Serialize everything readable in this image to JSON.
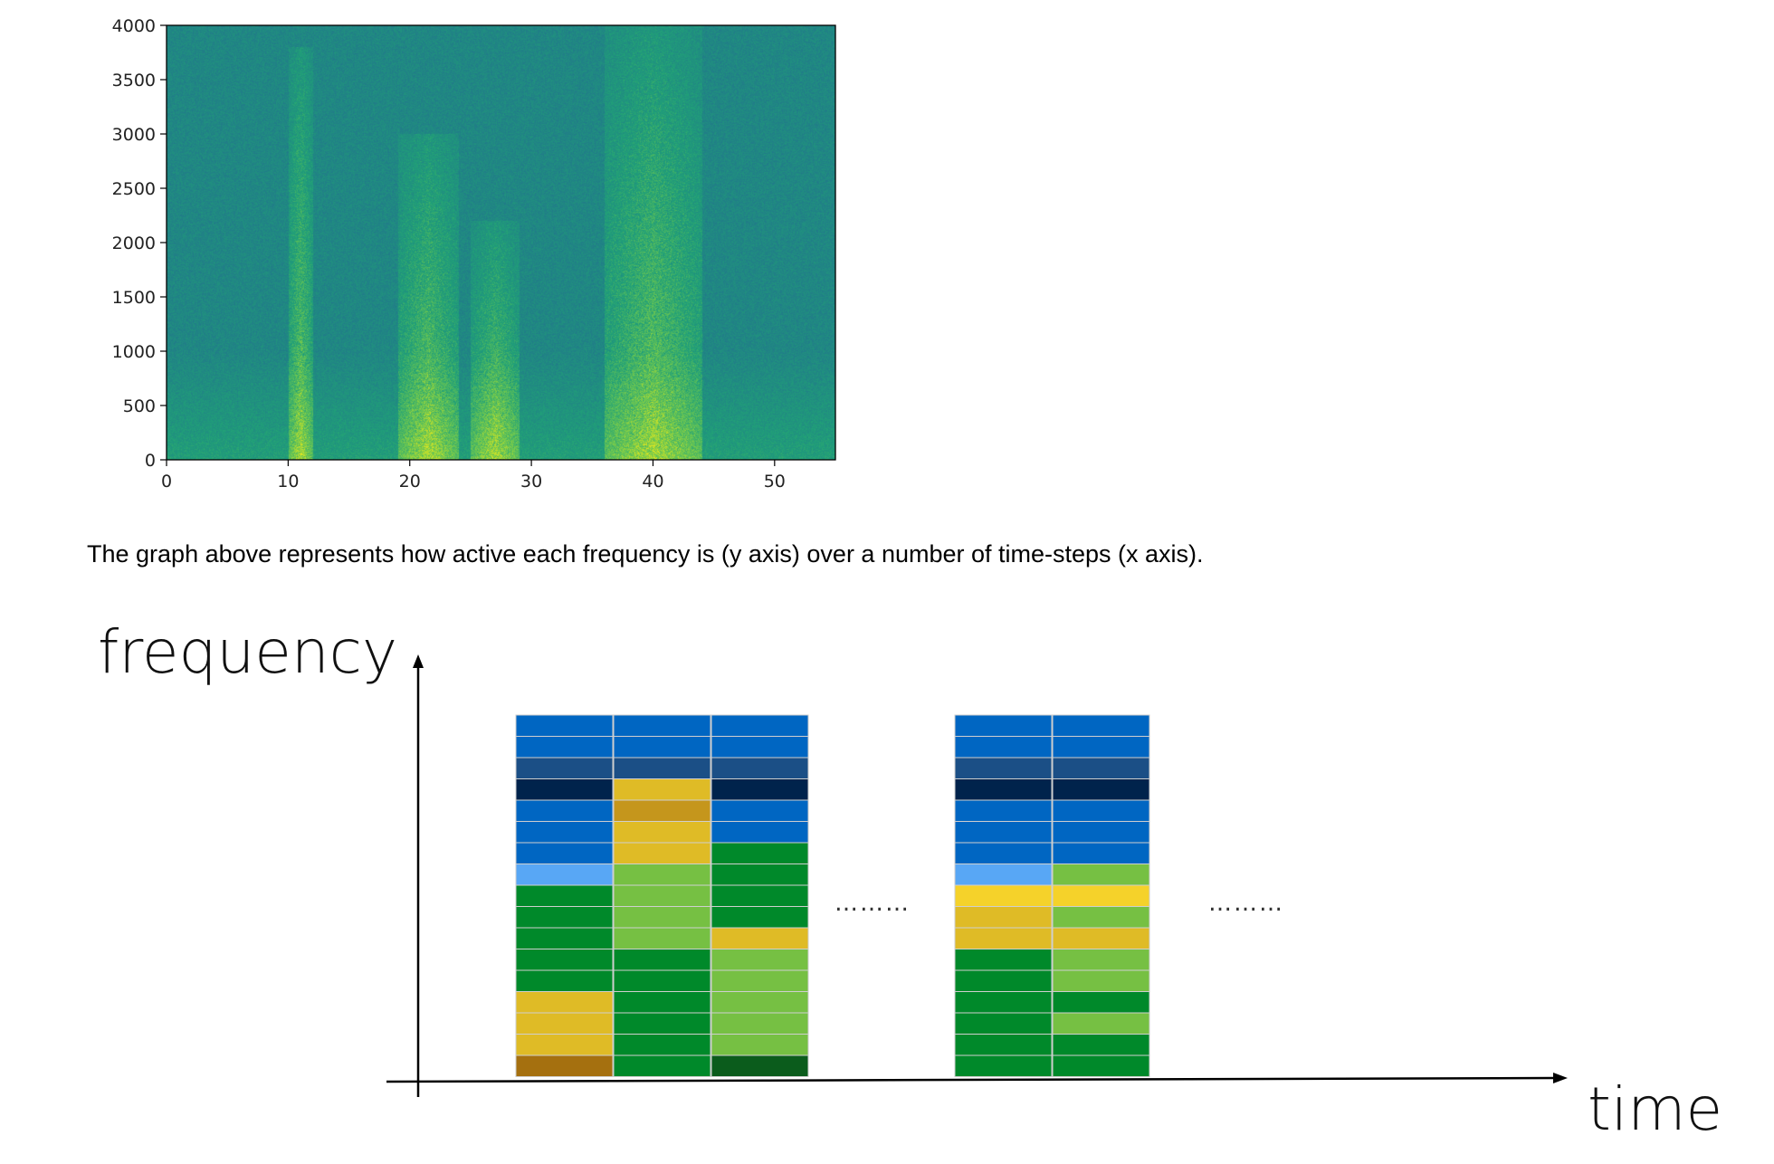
{
  "chart_data": [
    {
      "type": "heatmap",
      "title": "",
      "xlabel": "",
      "ylabel": "",
      "xlim": [
        0,
        55
      ],
      "ylim": [
        0,
        4000
      ],
      "x_ticks": [
        0,
        10,
        20,
        30,
        40,
        50
      ],
      "y_ticks": [
        0,
        500,
        1000,
        1500,
        2000,
        2500,
        3000,
        3500,
        4000
      ],
      "colormap": "viridis",
      "grid": false,
      "active_segments": [
        {
          "x_start": 10,
          "x_end": 12,
          "max_freq": 3800
        },
        {
          "x_start": 19,
          "x_end": 24,
          "max_freq": 3000
        },
        {
          "x_start": 25,
          "x_end": 29,
          "max_freq": 2200
        },
        {
          "x_start": 36,
          "x_end": 44,
          "max_freq": 4000
        }
      ]
    },
    {
      "type": "heatmap",
      "xlabel": "time",
      "ylabel": "frequency",
      "ellipsis": "………",
      "column_groups": [
        {
          "columns": [
            [
              "#0066c2",
              "#0066c2",
              "#1b4f86",
              "#00234c",
              "#0066c2",
              "#0066c2",
              "#0066c2",
              "#58a7f5",
              "#00892a",
              "#00892a",
              "#00892a",
              "#00892a",
              "#00892a",
              "#dfbb26",
              "#dfbb26",
              "#dfbb26",
              "#a5700f"
            ],
            [
              "#0066c2",
              "#0066c2",
              "#1b4f86",
              "#dfbb26",
              "#c5961c",
              "#dfbb26",
              "#dfbb26",
              "#76c043",
              "#76c043",
              "#76c043",
              "#76c043",
              "#00892a",
              "#00892a",
              "#00892a",
              "#00892a",
              "#00892a",
              "#00892a"
            ],
            [
              "#0066c2",
              "#0066c2",
              "#1b4f86",
              "#00234c",
              "#0066c2",
              "#0066c2",
              "#00892a",
              "#00892a",
              "#00892a",
              "#00892a",
              "#dfbb26",
              "#76c043",
              "#76c043",
              "#76c043",
              "#76c043",
              "#76c043",
              "#0b5c1c"
            ]
          ]
        },
        {
          "columns": [
            [
              "#0066c2",
              "#0066c2",
              "#1b4f86",
              "#00234c",
              "#0066c2",
              "#0066c2",
              "#0066c2",
              "#58a7f5",
              "#f5d22a",
              "#dfbb26",
              "#dfbb26",
              "#00892a",
              "#00892a",
              "#00892a",
              "#00892a",
              "#00892a",
              "#00892a"
            ],
            [
              "#0066c2",
              "#0066c2",
              "#1b4f86",
              "#00234c",
              "#0066c2",
              "#0066c2",
              "#0066c2",
              "#76c043",
              "#f5d22a",
              "#76c043",
              "#dfbb26",
              "#76c043",
              "#76c043",
              "#00892a",
              "#76c043",
              "#00892a",
              "#00892a"
            ]
          ]
        }
      ]
    }
  ],
  "caption": "The graph above represents how active each frequency is (y axis) over a number of time-steps (x axis)."
}
